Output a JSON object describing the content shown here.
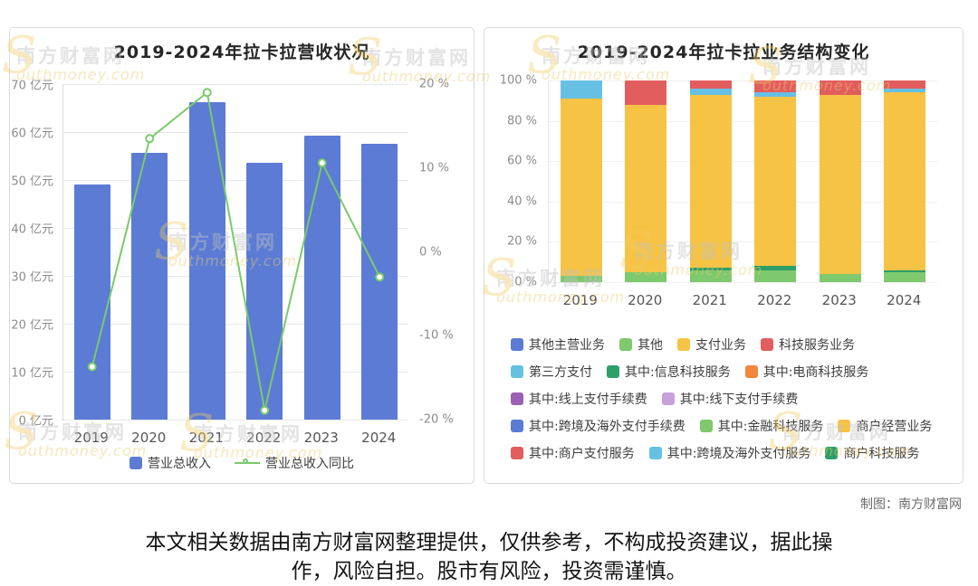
{
  "watermark": {
    "cn": "南方财富网",
    "en": "Southmoney.com"
  },
  "credit": "制图：南方财富网",
  "disclaimer": "本文相关数据由南方财富网整理提供，仅供参考，不构成投资建议，据此操作，风险自担。股市有风险，投资需谨慎。",
  "chart_data": [
    {
      "type": "bar",
      "title": "2019-2024年拉卡拉营收状况",
      "categories": [
        "2019",
        "2020",
        "2021",
        "2022",
        "2023",
        "2024"
      ],
      "bar_series": {
        "name": "营业总收入",
        "unit": "亿元",
        "color": "#5b7bd5",
        "values": [
          48.99,
          55.62,
          66.18,
          53.66,
          59.33,
          57.59
        ]
      },
      "line_series": {
        "name": "营业总收入同比",
        "unit": "%",
        "color": "#7bc96c",
        "values": [
          -13.7,
          13.5,
          19.0,
          -18.9,
          10.6,
          -3.0
        ]
      },
      "left_axis": {
        "min": 0,
        "max": 70,
        "ticks": [
          "70 亿元",
          "60 亿元",
          "50 亿元",
          "40 亿元",
          "30 亿元",
          "20 亿元",
          "10 亿元",
          "0 亿元"
        ]
      },
      "right_axis": {
        "min": -20,
        "max": 20,
        "ticks": [
          "20 %",
          "10 %",
          "0 %",
          "-10 %",
          "-20 %"
        ]
      },
      "grid": true,
      "legend_position": "bottom",
      "legend": [
        {
          "label": "营业总收入",
          "color": "#5b7bd5",
          "marker": "square"
        },
        {
          "label": "营业总收入同比",
          "color": "#7bc96c",
          "marker": "line-circle"
        }
      ]
    },
    {
      "type": "bar",
      "subtype": "stacked-percent",
      "title": "2019-2024年拉卡拉业务结构变化",
      "categories": [
        "2019",
        "2020",
        "2021",
        "2022",
        "2023",
        "2024"
      ],
      "y_axis": {
        "min": 0,
        "max": 100,
        "ticks": [
          "100 %",
          "80 %",
          "60 %",
          "40 %",
          "20 %",
          "0 %"
        ]
      },
      "series": [
        {
          "name": "其他",
          "color": "#7ec96e",
          "values": [
            3,
            5,
            6,
            6,
            4,
            5
          ]
        },
        {
          "name": "商户科技服务",
          "color": "#2f9e68",
          "values": [
            0,
            0,
            1,
            2,
            0,
            1
          ]
        },
        {
          "name": "支付业务",
          "color": "#f6c344",
          "values": [
            88,
            83,
            86,
            84,
            89,
            88
          ]
        },
        {
          "name": "第三方支付",
          "color": "#66c0e4",
          "values": [
            9,
            0,
            3,
            2,
            0,
            2
          ]
        },
        {
          "name": "科技服务业务",
          "color": "#e25d5d",
          "values": [
            0,
            12,
            4,
            6,
            7,
            4
          ]
        }
      ],
      "grid": true,
      "legend_position": "bottom",
      "legend": [
        {
          "label": "其他主营业务",
          "color": "#5b7bd5"
        },
        {
          "label": "其他",
          "color": "#7ec96e"
        },
        {
          "label": "支付业务",
          "color": "#f6c344"
        },
        {
          "label": "科技服务业务",
          "color": "#e25d5d"
        },
        {
          "label": "第三方支付",
          "color": "#66c0e4"
        },
        {
          "label": "其中:信息科技服务",
          "color": "#2f9e68"
        },
        {
          "label": "其中:电商科技服务",
          "color": "#f0873c"
        },
        {
          "label": "其中:线上支付手续费",
          "color": "#9a60b4"
        },
        {
          "label": "其中:线下支付手续费",
          "color": "#c8a0dc"
        },
        {
          "label": "其中:跨境及海外支付手续费",
          "color": "#5b7bd5"
        },
        {
          "label": "其中:金融科技服务",
          "color": "#7ec96e"
        },
        {
          "label": "商户经营业务",
          "color": "#f6c344"
        },
        {
          "label": "其中:商户支付服务",
          "color": "#e25d5d"
        },
        {
          "label": "其中:跨境及海外支付服务",
          "color": "#66c0e4"
        },
        {
          "label": "商户科技服务",
          "color": "#2f9e68"
        }
      ]
    }
  ]
}
